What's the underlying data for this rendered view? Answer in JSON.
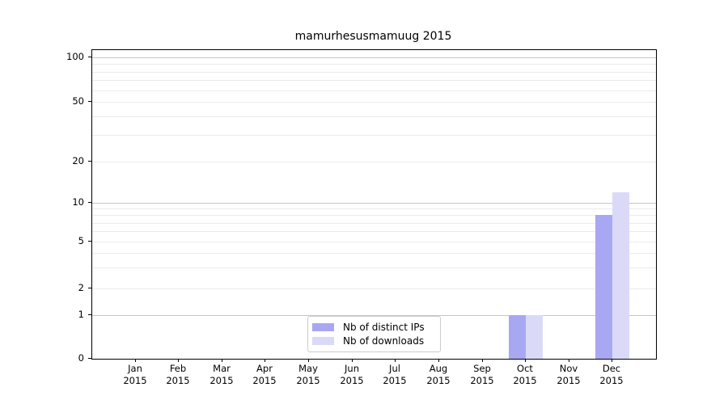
{
  "title": "mamurhesusmamuug 2015",
  "chart_data": {
    "type": "bar",
    "title": "mamurhesusmamuug 2015",
    "categories": [
      "Jan 2015",
      "Feb 2015",
      "Mar 2015",
      "Apr 2015",
      "May 2015",
      "Jun 2015",
      "Jul 2015",
      "Aug 2015",
      "Sep 2015",
      "Oct 2015",
      "Nov 2015",
      "Dec 2015"
    ],
    "category_line1": [
      "Jan",
      "Feb",
      "Mar",
      "Apr",
      "May",
      "Jun",
      "Jul",
      "Aug",
      "Sep",
      "Oct",
      "Nov",
      "Dec"
    ],
    "category_line2": [
      "2015",
      "2015",
      "2015",
      "2015",
      "2015",
      "2015",
      "2015",
      "2015",
      "2015",
      "2015",
      "2015",
      "2015"
    ],
    "series": [
      {
        "name": "Nb of distinct IPs",
        "color": "#a8a8f2",
        "values": [
          0,
          0,
          0,
          0,
          0,
          0,
          0,
          0,
          0,
          1,
          0,
          8
        ]
      },
      {
        "name": "Nb of downloads",
        "color": "#dadaf8",
        "values": [
          0,
          0,
          0,
          0,
          0,
          0,
          0,
          0,
          0,
          1,
          0,
          12
        ]
      }
    ],
    "xlabel": "",
    "ylabel": "",
    "yticks": [
      0,
      1,
      2,
      5,
      10,
      20,
      50,
      100
    ],
    "ylim": [
      0,
      113
    ],
    "yscale": "log above 1, linear 0-1 (symlog)",
    "grid": "horizontal; major lines at 1/10/100, faint minor log lines",
    "legend_position": "lower center",
    "colors": {
      "major_grid": "#c6c6c6",
      "minor_grid": "#ebebeb",
      "axis": "#000000",
      "background": "#ffffff"
    }
  }
}
